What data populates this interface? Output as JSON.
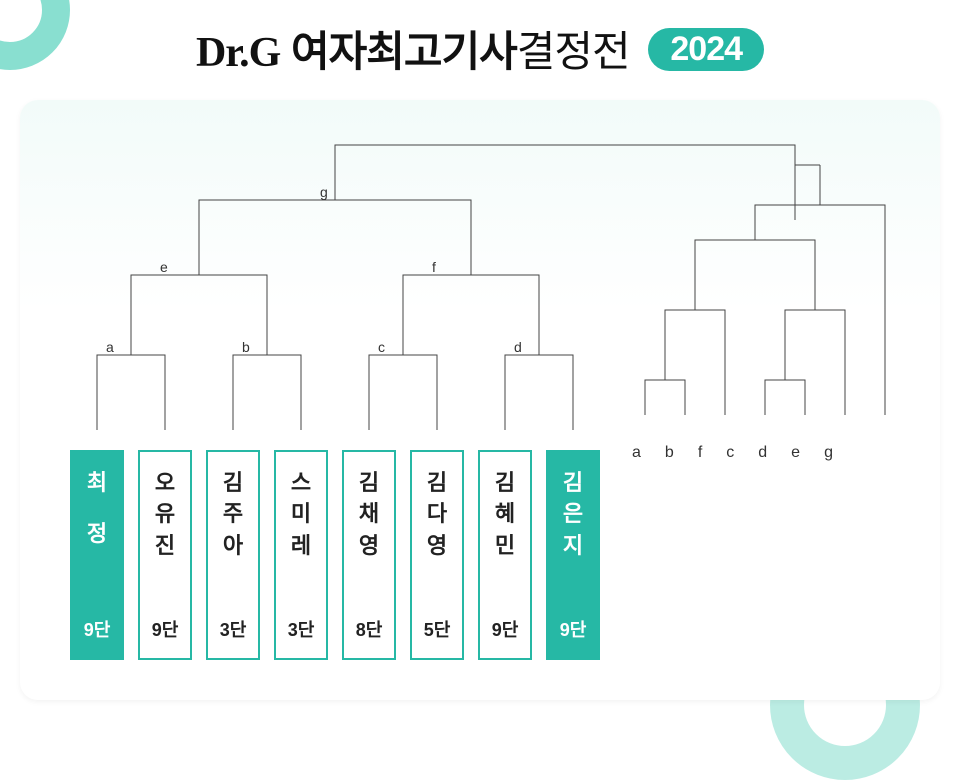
{
  "header": {
    "brand": "Dr.G",
    "title_bold": "여자최고기사",
    "title_light": "결정전",
    "year": "2024"
  },
  "colors": {
    "accent": "#26b8a5",
    "line": "#444444",
    "bg_card_top": "#f2fbf9"
  },
  "players": [
    {
      "name": "최 정",
      "rank": "9단",
      "seed": true,
      "name_chars": [
        "최",
        "정"
      ],
      "two": true
    },
    {
      "name": "오유진",
      "rank": "9단",
      "seed": false,
      "name_chars": [
        "오",
        "유",
        "진"
      ]
    },
    {
      "name": "김주아",
      "rank": "3단",
      "seed": false,
      "name_chars": [
        "김",
        "주",
        "아"
      ]
    },
    {
      "name": "스미레",
      "rank": "3단",
      "seed": false,
      "name_chars": [
        "스",
        "미",
        "레"
      ]
    },
    {
      "name": "김채영",
      "rank": "8단",
      "seed": false,
      "name_chars": [
        "김",
        "채",
        "영"
      ]
    },
    {
      "name": "김다영",
      "rank": "5단",
      "seed": false,
      "name_chars": [
        "김",
        "다",
        "영"
      ]
    },
    {
      "name": "김혜민",
      "rank": "9단",
      "seed": false,
      "name_chars": [
        "김",
        "혜",
        "민"
      ]
    },
    {
      "name": "김은지",
      "rank": "9단",
      "seed": true,
      "name_chars": [
        "김",
        "은",
        "지"
      ]
    }
  ],
  "bracket": {
    "round1_labels": [
      "a",
      "b",
      "c",
      "d"
    ],
    "round2_labels": [
      "e",
      "f"
    ],
    "round3_label": "g",
    "losers_order": [
      "a",
      "b",
      "f",
      "c",
      "d",
      "e",
      "g"
    ]
  }
}
